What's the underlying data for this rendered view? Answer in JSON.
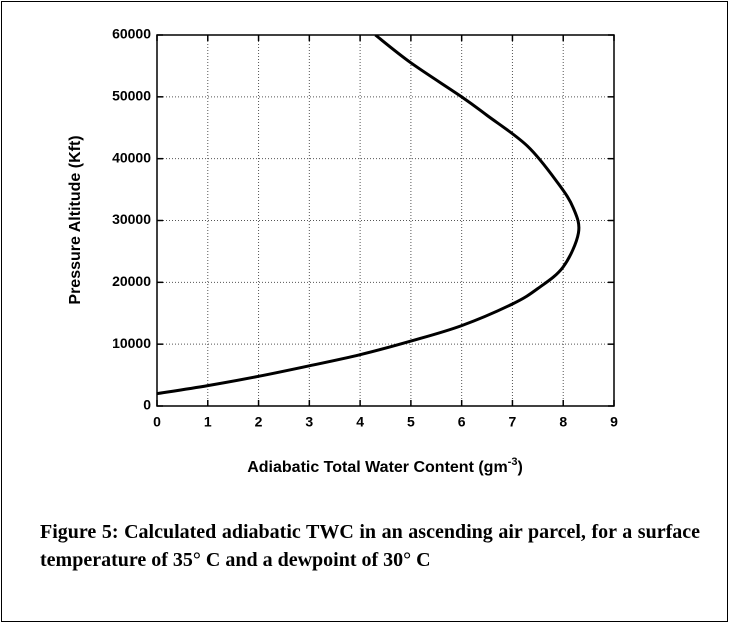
{
  "chart_data": {
    "type": "line",
    "x_label_parts": [
      "Adiabatic Total Water Content (gm",
      "-3",
      ")"
    ],
    "y_label": "Pressure Altitude (Kft)",
    "x": [
      0,
      1,
      2,
      3,
      4,
      5,
      6,
      7,
      7.5,
      8,
      8.3,
      8.2,
      7.9,
      7.3,
      6.5,
      6,
      5,
      4.3
    ],
    "series": [
      {
        "color": "#000000",
        "values": [
          2000,
          3300,
          4800,
          6500,
          8300,
          10500,
          13000,
          16500,
          19000,
          22500,
          28000,
          32000,
          36000,
          42000,
          47000,
          50000,
          55500,
          60000
        ]
      }
    ],
    "xlim": [
      0,
      9
    ],
    "xticks": [
      0,
      1,
      2,
      3,
      4,
      5,
      6,
      7,
      8,
      9
    ],
    "ylim": [
      0,
      60000
    ],
    "yticks": [
      0,
      10000,
      20000,
      30000,
      40000,
      50000,
      60000
    ],
    "grid": true
  },
  "caption": "Figure 5:  Calculated adiabatic TWC in an ascending air parcel, for a surface temperature  of 35° C and a dewpoint of  30° C"
}
